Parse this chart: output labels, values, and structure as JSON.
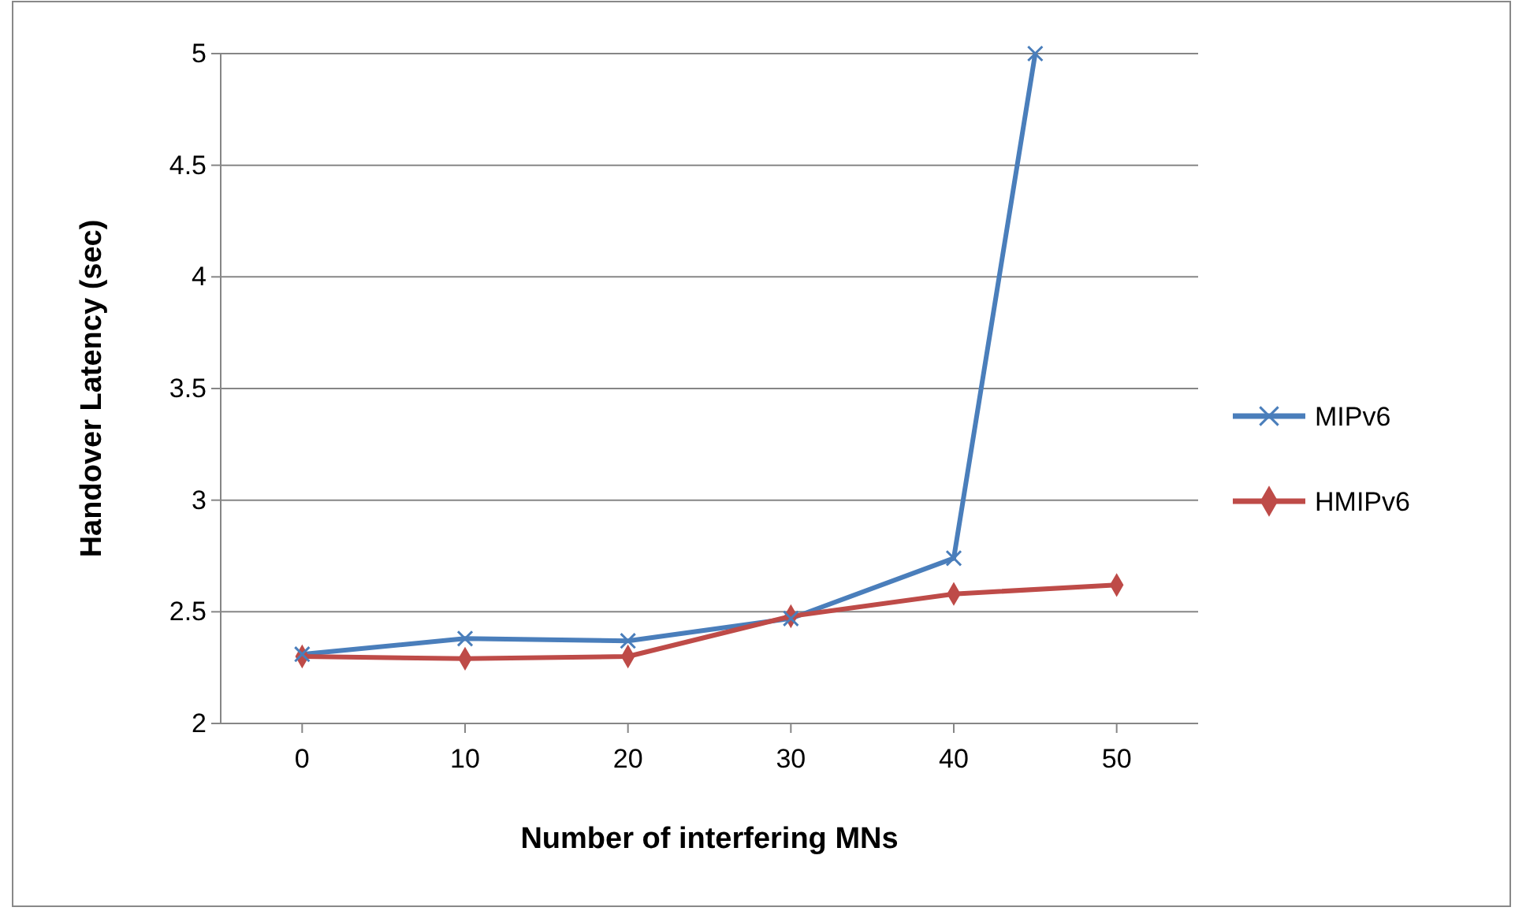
{
  "chart_data": {
    "type": "line",
    "xlabel": "Number of interfering MNs",
    "ylabel": "Handover Latency (sec)",
    "xlim": [
      -5,
      55
    ],
    "xticks": [
      0,
      10,
      20,
      30,
      40,
      50
    ],
    "ylim": [
      2,
      5
    ],
    "yticks": [
      2,
      2.5,
      3,
      3.5,
      4,
      4.5,
      5
    ],
    "grid": "y",
    "legend": "right",
    "series": [
      {
        "name": "MIPv6",
        "color": "#4a7ebb",
        "marker": "cross",
        "x": [
          0,
          10,
          20,
          30,
          40,
          45
        ],
        "values": [
          2.31,
          2.38,
          2.37,
          2.47,
          2.74,
          5
        ]
      },
      {
        "name": "HMIPv6",
        "color": "#be4b48",
        "marker": "diamond",
        "x": [
          0,
          10,
          20,
          30,
          40,
          50
        ],
        "values": [
          2.3,
          2.29,
          2.3,
          2.48,
          2.58,
          2.62
        ]
      }
    ]
  }
}
